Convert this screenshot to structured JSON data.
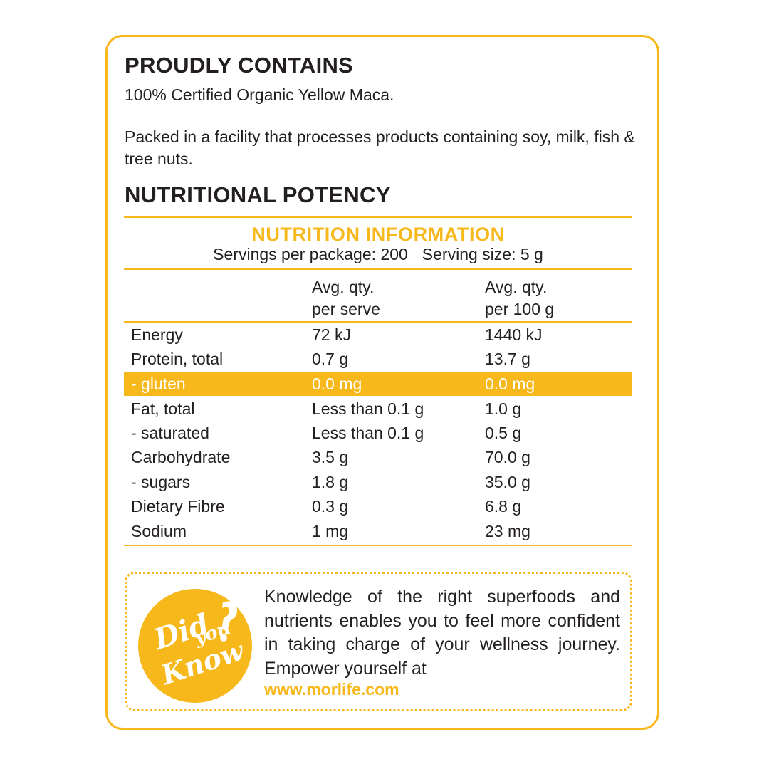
{
  "contains": {
    "heading": "PROUDLY CONTAINS",
    "ingredients": "100% Certified Organic Yellow Maca.",
    "allergen": "Packed in a facility that processes products containing soy, milk, fish & tree nuts."
  },
  "potency": {
    "heading": "NUTRITIONAL POTENCY"
  },
  "nutrition": {
    "title": "NUTRITION INFORMATION",
    "servings": "Servings per package: 200",
    "serving_size": "Serving size: 5 g",
    "col_serve_1": "Avg. qty.",
    "col_serve_2": "per serve",
    "col_100_1": "Avg. qty.",
    "col_100_2": "per 100 g",
    "rows": [
      {
        "name": "Energy",
        "serve": "72 kJ",
        "per100": "1440 kJ"
      },
      {
        "name": "Protein, total",
        "serve": "0.7 g",
        "per100": "13.7 g"
      },
      {
        "name": "- gluten",
        "serve": "0.0 mg",
        "per100": "0.0 mg"
      },
      {
        "name": "Fat, total",
        "serve": "Less than 0.1 g",
        "per100": "1.0 g"
      },
      {
        "name": "- saturated",
        "serve": "Less than 0.1 g",
        "per100": "0.5 g"
      },
      {
        "name": "Carbohydrate",
        "serve": "3.5 g",
        "per100": "70.0 g"
      },
      {
        "name": "- sugars",
        "serve": "1.8 g",
        "per100": "35.0 g"
      },
      {
        "name": "Dietary Fibre",
        "serve": "0.3 g",
        "per100": "6.8 g"
      },
      {
        "name": "Sodium",
        "serve": "1 mg",
        "per100": "23 mg"
      }
    ]
  },
  "did_you_know": {
    "badge_line1": "Did",
    "badge_line2": "you",
    "badge_line3": "Know",
    "text": "Knowledge of the right superfoods and nutrients enables you to feel more confident in taking charge of your wellness journey. Empower yourself at",
    "url": "www.morlife.com"
  },
  "colors": {
    "accent": "#f7b81b",
    "text": "#231f20"
  }
}
